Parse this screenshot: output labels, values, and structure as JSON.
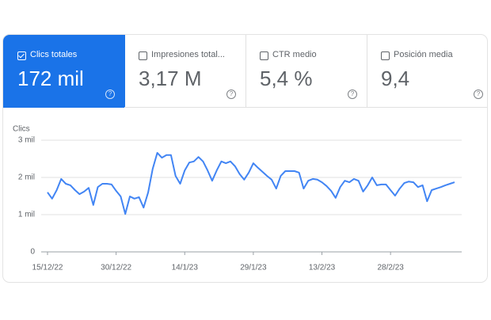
{
  "cards": [
    {
      "label": "Clics totales",
      "value": "172 mil",
      "selected": true
    },
    {
      "label": "Impresiones total...",
      "value": "3,17 M",
      "selected": false
    },
    {
      "label": "CTR medio",
      "value": "5,4 %",
      "selected": false
    },
    {
      "label": "Posición media",
      "value": "9,4",
      "selected": false
    }
  ],
  "chart_data": {
    "type": "line",
    "y_label": "Clics",
    "color": "#4285f4",
    "categories": [
      "15/12/22",
      null,
      null,
      null,
      null,
      null,
      null,
      null,
      null,
      null,
      null,
      null,
      null,
      null,
      null,
      "30/12/22",
      null,
      null,
      null,
      null,
      null,
      null,
      null,
      null,
      null,
      null,
      null,
      null,
      null,
      null,
      "14/1/23",
      null,
      null,
      null,
      null,
      null,
      null,
      null,
      null,
      null,
      null,
      null,
      null,
      null,
      null,
      "29/1/23",
      null,
      null,
      null,
      null,
      null,
      null,
      null,
      null,
      null,
      null,
      null,
      null,
      null,
      null,
      "13/2/23",
      null,
      null,
      null,
      null,
      null,
      null,
      null,
      null,
      null,
      null,
      null,
      null,
      null,
      null,
      "28/2/23",
      null,
      null,
      null,
      null,
      null,
      null,
      null,
      null,
      null,
      null,
      null,
      null,
      null,
      null
    ],
    "values": [
      1600,
      1430,
      1660,
      1960,
      1830,
      1790,
      1660,
      1550,
      1620,
      1720,
      1260,
      1740,
      1830,
      1830,
      1810,
      1640,
      1490,
      1020,
      1490,
      1430,
      1470,
      1190,
      1600,
      2230,
      2660,
      2530,
      2600,
      2600,
      2040,
      1830,
      2190,
      2400,
      2430,
      2550,
      2430,
      2190,
      1910,
      2190,
      2430,
      2380,
      2430,
      2300,
      2090,
      1940,
      2130,
      2380,
      2260,
      2150,
      2040,
      1940,
      1700,
      2040,
      2170,
      2170,
      2170,
      2130,
      1700,
      1910,
      1960,
      1940,
      1870,
      1770,
      1640,
      1450,
      1740,
      1910,
      1870,
      1960,
      1910,
      1620,
      1790,
      2000,
      1790,
      1810,
      1810,
      1660,
      1510,
      1700,
      1850,
      1890,
      1870,
      1740,
      1790,
      1360,
      1660,
      1700,
      1740,
      1790,
      1830,
      1870
    ],
    "ylim": [
      0,
      3000
    ],
    "yticks": [
      0,
      {
        "value": 1000,
        "label": "1 mil"
      },
      {
        "value": 2000,
        "label": "2 mil"
      },
      {
        "value": 3000,
        "label": "3 mil"
      }
    ],
    "grid": true
  }
}
